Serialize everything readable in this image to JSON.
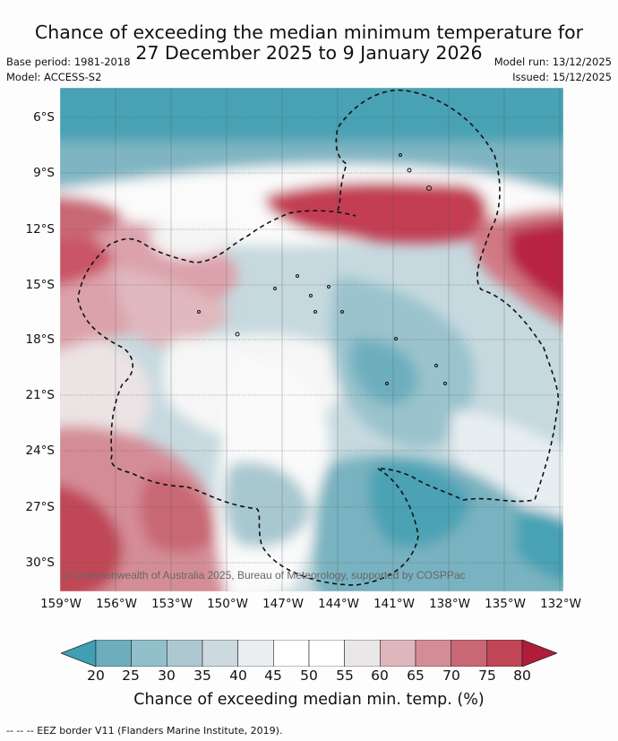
{
  "title_line1": "Chance of exceeding the median minimum temperature for",
  "title_line2": "27 December 2025 to 9 January 2026",
  "base_period": "Base period: 1981-2018",
  "model": "Model: ACCESS-S2",
  "model_run": "Model run: 13/12/2025",
  "issued": "Issued: 15/12/2025",
  "copyright": "© Commonwealth of Australia 2025, Bureau of Meteorology, supported by COSPPac",
  "lat_labels": [
    "6°S",
    "9°S",
    "12°S",
    "15°S",
    "18°S",
    "21°S",
    "24°S",
    "27°S",
    "30°S"
  ],
  "lon_labels": [
    "159°W",
    "156°W",
    "153°W",
    "150°W",
    "147°W",
    "144°W",
    "141°W",
    "138°W",
    "135°W",
    "132°W"
  ],
  "colorbar": {
    "ticks": [
      "20",
      "25",
      "30",
      "35",
      "40",
      "45",
      "50",
      "55",
      "60",
      "65",
      "70",
      "75",
      "80"
    ],
    "colors": [
      "#3f9fb3",
      "#6daebd",
      "#91bfca",
      "#adc8d0",
      "#ccd9de",
      "#eaeef0",
      "#ffffff",
      "#ffffff",
      "#ebe7e8",
      "#dfb6bc",
      "#d48d97",
      "#c96774",
      "#c04656",
      "#b11c3a"
    ],
    "label": "Chance of exceeding median min. temp. (%)"
  },
  "footnote": "--  --  -- EEZ border V11 (Flanders Marine Institute, 2019)."
}
